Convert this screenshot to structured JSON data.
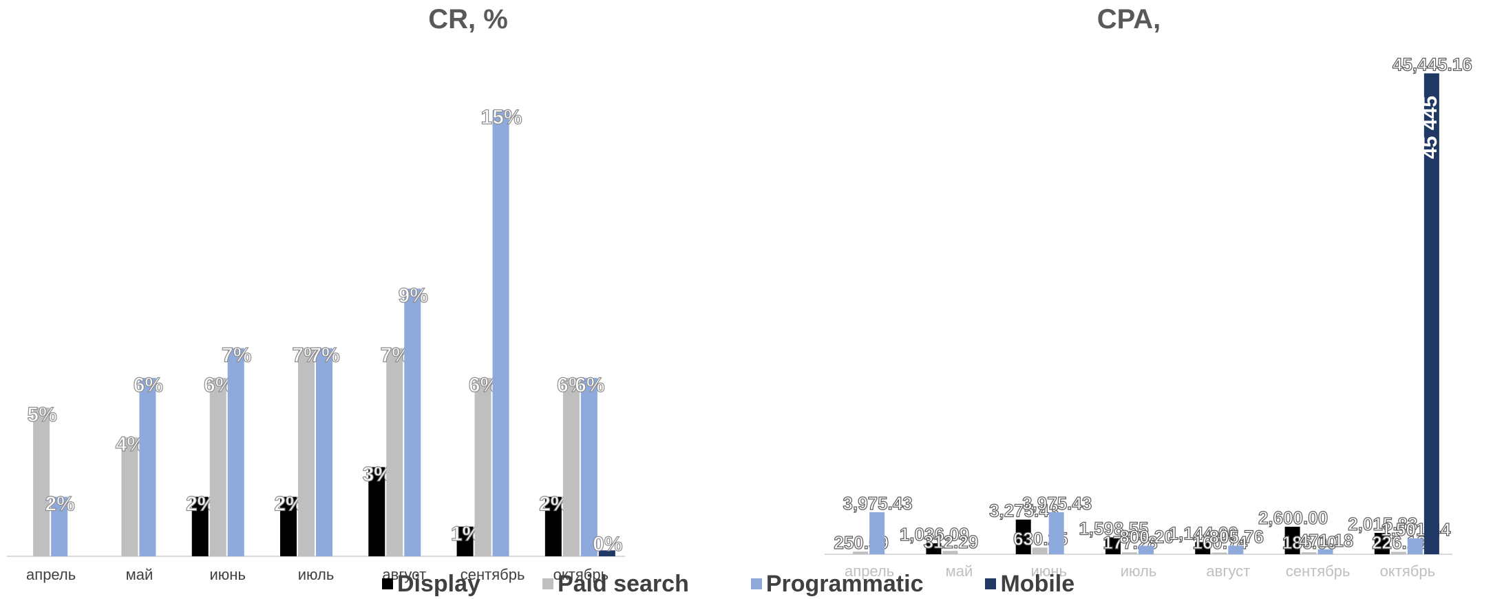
{
  "colors": {
    "display": "#000000",
    "paid_search": "#bfbfbf",
    "programmatic": "#8ea9db",
    "mobile": "#1f3864"
  },
  "legend": {
    "display": "Display",
    "paid_search": "Paid search",
    "programmatic": "Programmatic",
    "mobile": "Mobile"
  },
  "chart_data": [
    {
      "type": "bar",
      "title": "CR, %",
      "categories": [
        "апрель",
        "май",
        "июнь",
        "июль",
        "август",
        "сентябрь",
        "октябрь"
      ],
      "ylim": [
        0,
        15
      ],
      "grid": false,
      "legend_position": "bottom",
      "series": [
        {
          "name": "Display",
          "key": "display",
          "values": [
            null,
            null,
            2,
            2,
            3,
            1,
            2
          ],
          "labels": [
            "",
            "",
            "2%",
            "2%",
            "3%",
            "1%",
            "2%"
          ]
        },
        {
          "name": "Paid search",
          "key": "paid_search",
          "values": [
            5,
            4,
            6,
            7,
            7,
            6,
            6
          ],
          "labels": [
            "5%",
            "4%",
            "6%",
            "7%",
            "7%",
            "6%",
            "6%"
          ]
        },
        {
          "name": "Programmatic",
          "key": "programmatic",
          "values": [
            2,
            6,
            7,
            7,
            9,
            15,
            6
          ],
          "labels": [
            "2%",
            "6%",
            "7%",
            "7%",
            "9%",
            "15%",
            "6%"
          ]
        },
        {
          "name": "Mobile",
          "key": "mobile",
          "values": [
            null,
            null,
            null,
            null,
            null,
            null,
            0.2
          ],
          "labels": [
            "",
            "",
            "",
            "",
            "",
            "",
            "0%"
          ]
        }
      ]
    },
    {
      "type": "bar",
      "title": "CPA, ",
      "categories": [
        "апрель",
        "май",
        "июнь",
        "июль",
        "август",
        "сентябрь",
        "октябрь"
      ],
      "ylim": [
        0,
        46000
      ],
      "grid": false,
      "legend_position": "bottom",
      "series": [
        {
          "name": "Display",
          "key": "display",
          "values": [
            null,
            1036.09,
            3275.43,
            1598.55,
            1144.0,
            2600.0,
            2015.83
          ],
          "labels": [
            "",
            "1,036.09",
            "3,275.43",
            "1,598.55",
            "1,144.00",
            "2,600.00",
            "2,015.83"
          ]
        },
        {
          "name": "Paid search",
          "key": "paid_search",
          "values": [
            250.59,
            312.29,
            630.25,
            177.28,
            160.74,
            186.0,
            226.19
          ],
          "labels": [
            "250.59",
            "312.29",
            "630.25",
            "177.28",
            "160.74",
            "186.00",
            "226.19"
          ]
        },
        {
          "name": "Programmatic",
          "key": "programmatic",
          "values": [
            3975.43,
            null,
            3975.43,
            800.2,
            805.76,
            471.18,
            1501.44
          ],
          "labels": [
            "3,975.43",
            "",
            "3,975.43",
            "800.20",
            "805.76",
            "471.18",
            "1,501.44"
          ]
        },
        {
          "name": "Mobile",
          "key": "mobile",
          "values": [
            null,
            null,
            null,
            null,
            null,
            null,
            45445.16
          ],
          "labels": [
            "",
            "",
            "",
            "",
            "",
            "",
            "45,445.16"
          ]
        }
      ],
      "annotations": [
        "45 445"
      ]
    }
  ]
}
